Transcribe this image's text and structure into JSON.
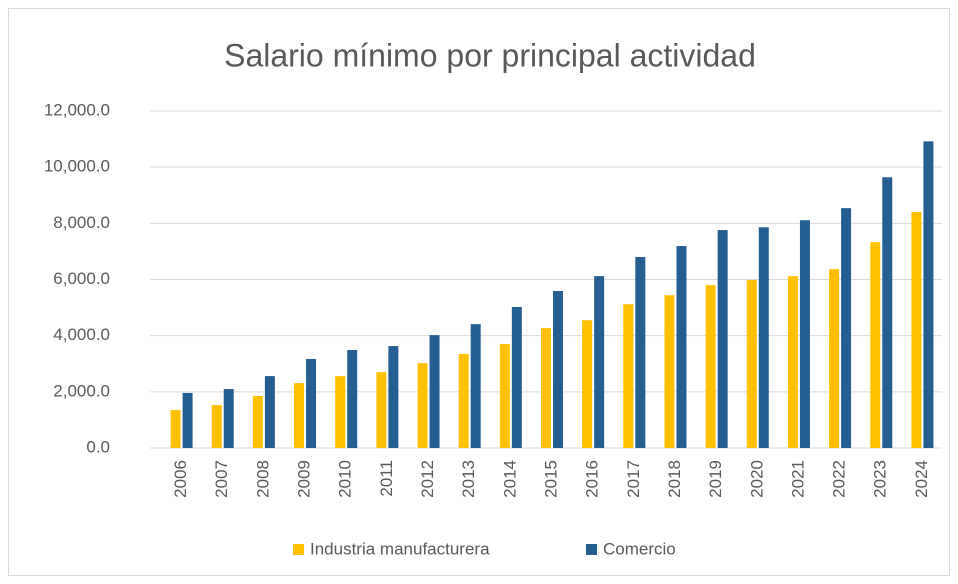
{
  "chart_data": {
    "type": "bar",
    "title": "Salario mínimo por principal actividad",
    "categories": [
      "2006",
      "2007",
      "2008",
      "2009",
      "2010",
      "2011",
      "2012",
      "2013",
      "2014",
      "2015",
      "2016",
      "2017",
      "2018",
      "2019",
      "2020",
      "2021",
      "2022",
      "2023",
      "2024"
    ],
    "series": [
      {
        "name": "Industria manufacturera",
        "color": "#FFC000",
        "values": [
          1350,
          1530,
          1850,
          2310,
          2560,
          2700,
          3020,
          3350,
          3700,
          4270,
          4550,
          5120,
          5440,
          5800,
          5980,
          6120,
          6370,
          7330,
          8400
        ]
      },
      {
        "name": "Comercio",
        "color": "#255E91",
        "values": [
          1960,
          2100,
          2560,
          3170,
          3490,
          3630,
          4020,
          4410,
          5020,
          5590,
          6120,
          6800,
          7190,
          7760,
          7860,
          8110,
          8540,
          9640,
          10920
        ]
      }
    ],
    "ylim": [
      0,
      12000
    ],
    "yticks": [
      {
        "value": 0,
        "label": "0.0"
      },
      {
        "value": 2000,
        "label": "2,000.0"
      },
      {
        "value": 4000,
        "label": "4,000.0"
      },
      {
        "value": 6000,
        "label": "6,000.0"
      },
      {
        "value": 8000,
        "label": "8,000.0"
      },
      {
        "value": 10000,
        "label": "10,000.0"
      },
      {
        "value": 12000,
        "label": "12,000.0"
      }
    ],
    "grid": true,
    "legend": "bottom"
  }
}
